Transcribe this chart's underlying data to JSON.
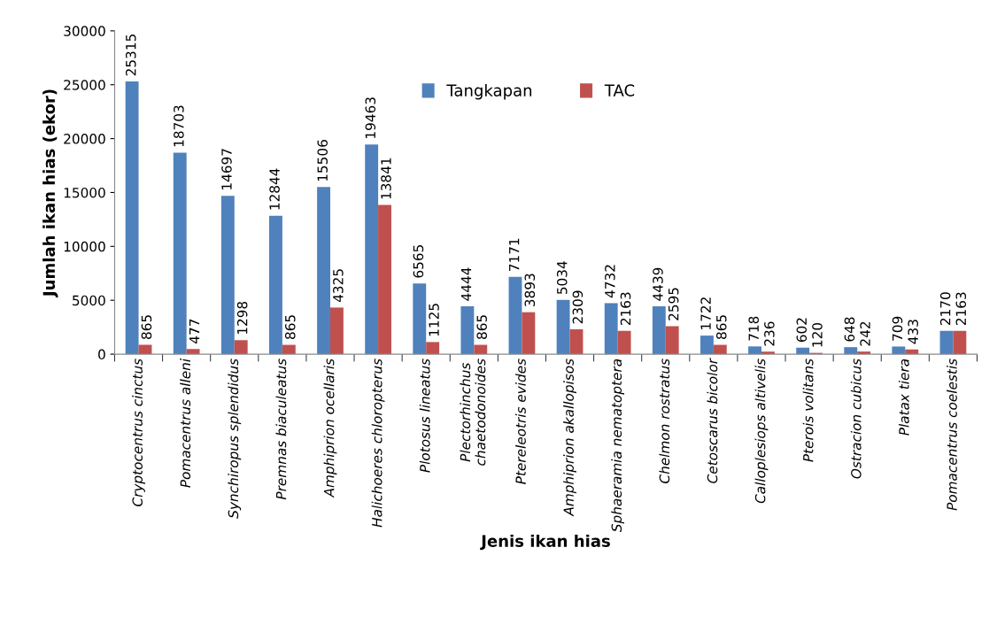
{
  "chart_data": {
    "type": "bar",
    "xlabel": "Jenis ikan hias",
    "ylabel": "Jumlah ikan hias (ekor)",
    "categories": [
      "Cryptocentrus cinctus",
      "Pomacentrus alleni",
      "Synchiropus splendidus",
      "Premnas biaculeatus",
      "Amphiprion ocellaris",
      "Halichoeres chloropterus",
      "Plotosus lineatus",
      "Plectorhinchus\nchaetodonoides",
      "Ptereleotris evides",
      "Amphiprion akallopisos",
      "Sphaeramia nematoptera",
      "Chelmon rostratus",
      "Cetoscarus bicolor",
      "Calloplesiops altivelis",
      "Pterois volitans",
      "Ostracion cubicus",
      "Platax tiera",
      "Pomacentrus coelestis"
    ],
    "series": [
      {
        "name": "Tangkapan",
        "color": "#4f81bd",
        "values": [
          25315,
          18703,
          14697,
          12844,
          15506,
          19463,
          6565,
          4444,
          7171,
          5034,
          4732,
          4439,
          1722,
          718,
          602,
          648,
          709,
          2170
        ]
      },
      {
        "name": "TAC",
        "color": "#c0504d",
        "values": [
          865,
          477,
          1298,
          865,
          4325,
          13841,
          1125,
          865,
          3893,
          2309,
          2163,
          2595,
          865,
          236,
          120,
          242,
          433,
          2163
        ]
      }
    ],
    "ylim": [
      0,
      30000
    ],
    "yticks": [
      0,
      5000,
      10000,
      15000,
      20000,
      25000,
      30000
    ],
    "data_labels": true,
    "grid": false,
    "legend": "top right"
  }
}
